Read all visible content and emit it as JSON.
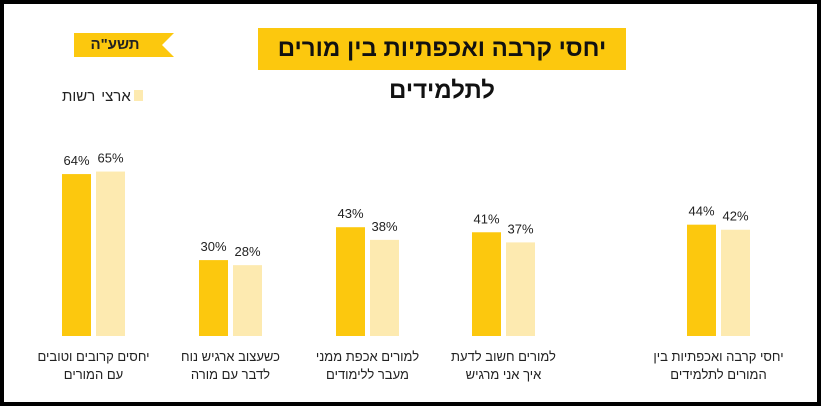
{
  "year_label": "תשע\"ה",
  "chart_data": {
    "type": "bar",
    "title": "יחסי קרבה ואכפתיות בין מורים לתלמידים",
    "xlabel": "",
    "ylabel": "",
    "ylim": [
      0,
      100
    ],
    "grid": false,
    "legend_position": "top-left",
    "categories": [
      [
        "יחסים קרובים וטובים",
        "עם המורים"
      ],
      [
        "כשעצוב ארגיש נוח",
        "לדבר עם מורה"
      ],
      [
        "למורים אכפת ממני",
        "מעבר ללימודים"
      ],
      [
        "למורים חשוב לדעת",
        "איך אני מרגיש"
      ],
      [
        "יחסי קרבה ואכפתיות בין",
        "המורים לתלמידים"
      ]
    ],
    "series": [
      {
        "name": "רשות",
        "color": "#fcc80e",
        "values": [
          64,
          30,
          43,
          41,
          44
        ]
      },
      {
        "name": "ארצי",
        "color": "#fdeab0",
        "values": [
          65,
          28,
          38,
          37,
          42
        ]
      }
    ]
  }
}
